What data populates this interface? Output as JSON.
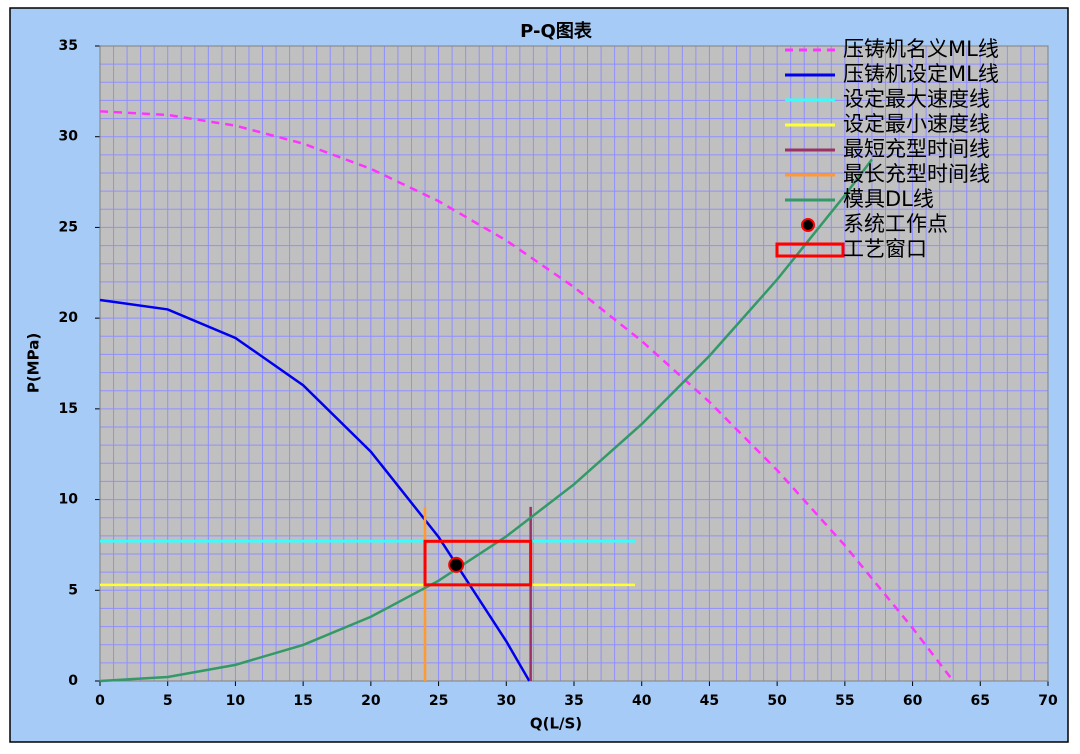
{
  "chart_data": {
    "type": "line",
    "title": "P-Q图表",
    "x_label": "Q(L/S)",
    "y_label": "P(MPa)",
    "xlim": [
      0,
      70
    ],
    "xticks": [
      0,
      5,
      10,
      15,
      20,
      25,
      30,
      35,
      40,
      45,
      50,
      55,
      60,
      65,
      70
    ],
    "ylim": [
      0,
      35
    ],
    "yticks": [
      0,
      5,
      10,
      15,
      20,
      25,
      30,
      35
    ],
    "grid": true,
    "legend": "upper right",
    "series": [
      {
        "name": "压铸机名义ML线",
        "color": "#ff33ff",
        "style": "dashed",
        "x": [
          0,
          5,
          10,
          15,
          20,
          25,
          30,
          35,
          40,
          45,
          50,
          55,
          60,
          63
        ],
        "values": [
          31.4,
          31.2,
          30.61,
          29.62,
          28.23,
          26.45,
          24.28,
          21.71,
          18.74,
          15.38,
          11.62,
          7.47,
          2.92,
          0
        ]
      },
      {
        "name": "压铸机设定ML线",
        "color": "#0000ee",
        "style": "solid",
        "x": [
          0,
          5,
          10,
          15,
          20,
          25,
          30,
          31.7
        ],
        "values": [
          21,
          20.48,
          18.91,
          16.3,
          12.64,
          7.94,
          2.19,
          0
        ]
      },
      {
        "name": "设定最大速度线",
        "color": "#33ffff",
        "style": "solid",
        "x": [
          0,
          39.5
        ],
        "values": [
          7.7,
          7.7
        ]
      },
      {
        "name": "设定最小速度线",
        "color": "#ffff33",
        "style": "solid",
        "x": [
          0,
          39.5
        ],
        "values": [
          5.3,
          5.3
        ]
      },
      {
        "name": "最短充型时间线",
        "color": "#993366",
        "style": "solid",
        "x": [
          31.8,
          31.8
        ],
        "values": [
          0,
          9.6
        ]
      },
      {
        "name": "最长充型时间线",
        "color": "#ff9933",
        "style": "solid",
        "x": [
          24,
          24
        ],
        "values": [
          0,
          9.6
        ]
      },
      {
        "name": "模具DL线",
        "color": "#339966",
        "style": "solid",
        "x": [
          0,
          5,
          10,
          15,
          20,
          25,
          30,
          35,
          40,
          45,
          50,
          55,
          57
        ],
        "values": [
          0,
          0.22,
          0.89,
          1.99,
          3.54,
          5.53,
          7.97,
          10.84,
          14.16,
          17.92,
          22.13,
          26.77,
          28.75
        ]
      },
      {
        "name": "系统工作点",
        "color": "#ff0000",
        "style": "point",
        "x": [
          26.3
        ],
        "values": [
          6.4
        ]
      },
      {
        "name": "工艺窗口",
        "color": "#ff0000",
        "style": "box",
        "x": [
          24,
          31.8
        ],
        "values": [
          5.3,
          7.7
        ]
      }
    ]
  }
}
